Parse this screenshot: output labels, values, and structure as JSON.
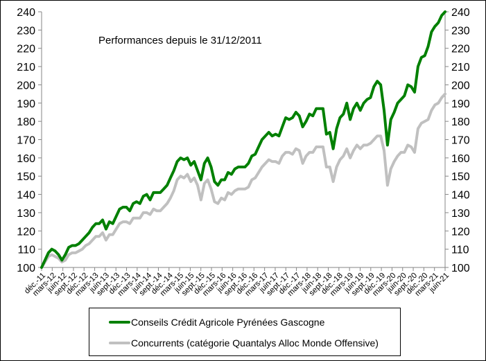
{
  "chart_data": {
    "type": "line",
    "title": "Performances depuis le 31/12/2011",
    "xlabel": "",
    "ylabel": "",
    "ylim": [
      100,
      240
    ],
    "yticks": [
      100,
      110,
      120,
      130,
      140,
      150,
      160,
      170,
      180,
      190,
      200,
      210,
      220,
      230,
      240
    ],
    "secondary_yaxis": true,
    "grid": false,
    "legend_position": "bottom",
    "x_tick_labels": [
      "déc.-11",
      "mars-12",
      "juin-12",
      "sept.-12",
      "déc.-12",
      "mars-13",
      "juin-13",
      "sept.-13",
      "déc.-13",
      "mars-14",
      "juin-14",
      "sept.-14",
      "déc.-14",
      "mars-15",
      "juin-15",
      "sept.-15",
      "déc.-15",
      "mars-16",
      "juin-16",
      "sept.-16",
      "déc.-16",
      "mars-17",
      "juin-17",
      "sept.-17",
      "déc.-17",
      "mars-18",
      "juin-18",
      "sept.-18",
      "déc.-18",
      "mars-19",
      "juin-19",
      "sept.-19",
      "déc.-19",
      "mars-20",
      "juin-20",
      "sept.-20",
      "déc.-20",
      "mars-21",
      "juin-21"
    ],
    "frequency": "monthly",
    "start": "déc.-11",
    "series": [
      {
        "name": "Conseils Crédit Agricole Pyrénées Gascogne",
        "color": "#008000",
        "values": [
          100,
          104,
          108,
          110,
          109,
          107,
          104,
          107,
          111,
          112,
          112,
          113,
          115,
          117,
          119,
          122,
          124,
          124,
          126,
          121,
          125,
          124,
          128,
          132,
          133,
          133,
          131,
          135,
          136,
          135,
          139,
          140,
          137,
          141,
          141,
          141,
          143,
          145,
          149,
          153,
          158,
          160,
          159,
          160,
          156,
          158,
          153,
          148,
          157,
          160,
          155,
          147,
          145,
          148,
          148,
          152,
          151,
          154,
          155,
          155,
          155,
          157,
          161,
          162,
          166,
          170,
          172,
          174,
          172,
          173,
          172,
          177,
          182,
          181,
          182,
          185,
          183,
          177,
          180,
          184,
          183,
          187,
          187,
          187,
          173,
          174,
          165,
          176,
          182,
          184,
          190,
          181,
          187,
          190,
          186,
          190,
          192,
          193,
          199,
          202,
          200,
          186,
          167,
          181,
          185,
          190,
          192,
          194,
          200,
          199,
          196,
          210,
          215,
          216,
          221,
          229,
          232,
          234,
          238,
          240
        ]
      },
      {
        "name": "Concurrents (catégorie Quantalys Alloc Monde Offensive)",
        "color": "#c0c0c0",
        "values": [
          100,
          103,
          106,
          107,
          106,
          105,
          103,
          104,
          107,
          108,
          108,
          109,
          110,
          112,
          113,
          115,
          117,
          117,
          119,
          115,
          118,
          118,
          121,
          124,
          125,
          125,
          124,
          127,
          127,
          127,
          130,
          130,
          129,
          132,
          131,
          131,
          133,
          135,
          138,
          142,
          148,
          150,
          149,
          151,
          147,
          149,
          145,
          137,
          146,
          148,
          143,
          136,
          135,
          138,
          137,
          141,
          140,
          142,
          143,
          143,
          143,
          144,
          148,
          149,
          152,
          155,
          157,
          159,
          158,
          158,
          157,
          161,
          163,
          163,
          162,
          165,
          164,
          157,
          161,
          163,
          163,
          166,
          166,
          166,
          155,
          155,
          147,
          155,
          159,
          161,
          165,
          160,
          164,
          167,
          165,
          167,
          167,
          168,
          170,
          172,
          172,
          164,
          145,
          154,
          158,
          161,
          163,
          163,
          167,
          166,
          163,
          176,
          179,
          180,
          181,
          186,
          189,
          190,
          193,
          195
        ]
      }
    ]
  },
  "chart": {
    "title": "Performances depuis le 31/12/2011",
    "y_ticks": [
      "100",
      "110",
      "120",
      "130",
      "140",
      "150",
      "160",
      "170",
      "180",
      "190",
      "200",
      "210",
      "220",
      "230",
      "240"
    ]
  },
  "legend": {
    "items": [
      {
        "label": "Conseils Crédit Agricole Pyrénées Gascogne",
        "color": "#008000"
      },
      {
        "label": "Concurrents (catégorie Quantalys Alloc Monde Offensive)",
        "color": "#c0c0c0"
      }
    ]
  }
}
